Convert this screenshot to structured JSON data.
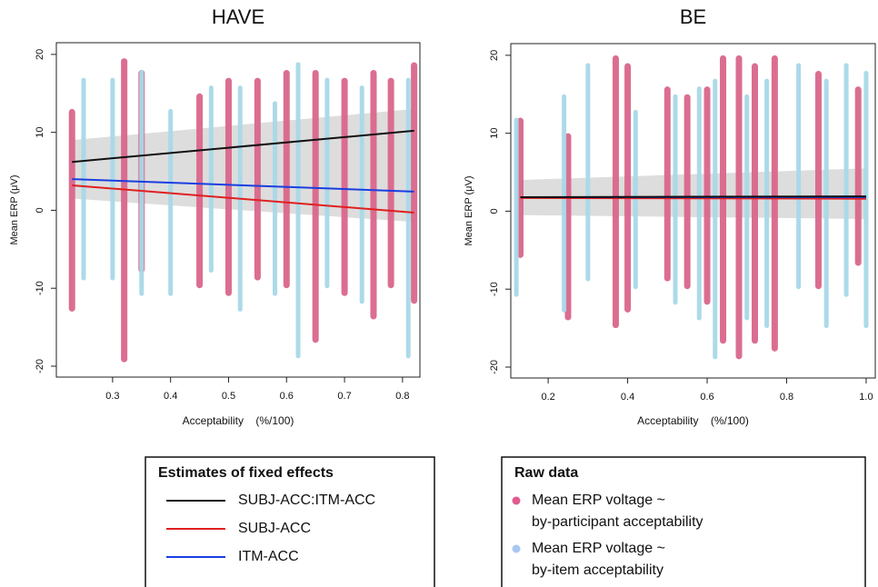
{
  "chart_data": [
    {
      "type": "scatter",
      "title": "HAVE",
      "xlabel": "Acceptability    (%/100)",
      "ylabel": "Mean ERP (μV)",
      "xlim": [
        0.203,
        0.83
      ],
      "ylim": [
        -21.4,
        21.5
      ],
      "xticks": [
        0.3,
        0.4,
        0.5,
        0.6,
        0.7,
        0.8
      ],
      "yticks": [
        -20,
        -10,
        0,
        10,
        20
      ],
      "columns": [
        {
          "color": "#d9668a",
          "x": [
            0.23,
            0.32,
            0.35,
            0.45,
            0.5,
            0.55,
            0.6,
            0.65,
            0.7,
            0.75,
            0.78,
            0.82
          ],
          "low": [
            -13,
            -19.5,
            -8,
            -10,
            -11,
            -9,
            -10,
            -17,
            -11,
            -14,
            -10,
            -12
          ],
          "high": [
            13,
            19.5,
            18,
            15,
            17,
            17,
            18,
            18,
            17,
            18,
            17,
            19
          ]
        },
        {
          "color": "#a8d8e8",
          "x": [
            0.25,
            0.3,
            0.35,
            0.4,
            0.47,
            0.52,
            0.58,
            0.62,
            0.67,
            0.73,
            0.81
          ],
          "low": [
            -9,
            -9,
            -11,
            -11,
            -8,
            -13,
            -11,
            -19,
            -10,
            -12,
            -19
          ],
          "high": [
            17,
            17,
            18,
            13,
            16,
            16,
            14,
            19,
            17,
            16,
            17
          ]
        }
      ],
      "band": {
        "color": "#bbbbbb",
        "x": [
          0.23,
          0.82
        ],
        "low": [
          1.5,
          -1.5
        ],
        "high": [
          9,
          13
        ]
      },
      "lines": [
        {
          "color": "#111111",
          "x": [
            0.23,
            0.82
          ],
          "values": [
            6.2,
            10.2
          ]
        },
        {
          "color": "#e02020",
          "x": [
            0.23,
            0.82
          ],
          "values": [
            3.2,
            -0.3
          ]
        },
        {
          "color": "#1a3ee0",
          "x": [
            0.23,
            0.82
          ],
          "values": [
            4.0,
            2.4
          ]
        }
      ]
    },
    {
      "type": "scatter",
      "title": "BE",
      "xlabel": "Acceptability    (%/100)",
      "ylabel": "Mean ERP (μV)",
      "xlim": [
        0.106,
        1.023
      ],
      "ylim": [
        -21.4,
        21.5
      ],
      "xticks": [
        0.2,
        0.4,
        0.6,
        0.8,
        {
          "value": 1,
          "label": "1.0"
        }
      ],
      "yticks": [
        -20,
        -10,
        0,
        10,
        20
      ],
      "columns": [
        {
          "color": "#d9668a",
          "x": [
            0.13,
            0.25,
            0.37,
            0.4,
            0.5,
            0.55,
            0.6,
            0.64,
            0.68,
            0.72,
            0.77,
            0.88,
            0.98
          ],
          "low": [
            -6,
            -14,
            -15,
            -13,
            -9,
            -10,
            -12,
            -17,
            -19,
            -17,
            -18,
            -10,
            -7
          ],
          "high": [
            12,
            10,
            20,
            19,
            16,
            15,
            16,
            20,
            20,
            19,
            20,
            18,
            16
          ]
        },
        {
          "color": "#a8d8e8",
          "x": [
            0.12,
            0.24,
            0.3,
            0.42,
            0.52,
            0.58,
            0.62,
            0.7,
            0.75,
            0.83,
            0.9,
            0.95,
            1.0
          ],
          "low": [
            -11,
            -13,
            -9,
            -10,
            -12,
            -14,
            -19,
            -14,
            -15,
            -10,
            -15,
            -11,
            -15
          ],
          "high": [
            12,
            15,
            19,
            13,
            15,
            16,
            17,
            15,
            17,
            19,
            17,
            19,
            18
          ]
        }
      ],
      "band": {
        "color": "#bbbbbb",
        "x": [
          0.13,
          1.0
        ],
        "low": [
          -0.5,
          -1
        ],
        "high": [
          4,
          5.5
        ]
      },
      "lines": [
        {
          "color": "#e02020",
          "x": [
            0.13,
            1.0
          ],
          "values": [
            1.7,
            1.6
          ]
        },
        {
          "color": "#1a3ee0",
          "x": [
            0.13,
            1.0
          ],
          "values": [
            1.8,
            1.8
          ]
        },
        {
          "color": "#111111",
          "x": [
            0.13,
            1.0
          ],
          "values": [
            1.8,
            1.9
          ]
        }
      ]
    }
  ],
  "legend_fixed": {
    "title": "Estimates of fixed effects",
    "entries": [
      {
        "label": "SUBJ-ACC:ITM-ACC",
        "color": "#111111"
      },
      {
        "label": "SUBJ-ACC",
        "color": "#e02020"
      },
      {
        "label": "ITM-ACC",
        "color": "#1a3ee0"
      }
    ]
  },
  "legend_raw": {
    "title": "Raw data",
    "entries": [
      {
        "lines": [
          "Mean ERP voltage ~",
          "by-participant acceptability"
        ],
        "color": "#e05a90"
      },
      {
        "lines": [
          "Mean ERP voltage ~",
          "by-item acceptability"
        ],
        "color": "#a8c8f0"
      }
    ]
  }
}
